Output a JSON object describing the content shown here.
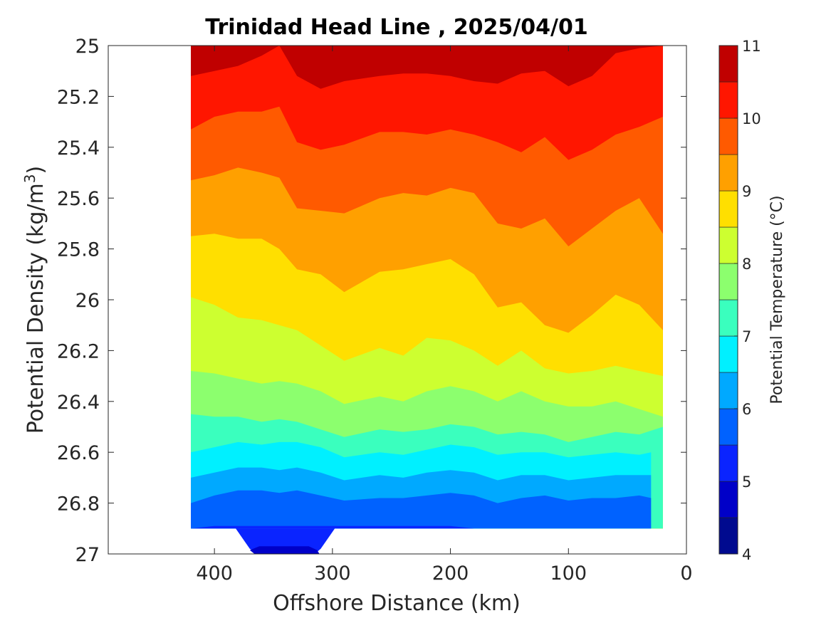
{
  "chart_data": {
    "type": "heatmap",
    "title": "Trinidad Head Line , 2025/04/01",
    "xlabel": "Offshore Distance (km)",
    "ylabel": "Potential Density (kg/m",
    "ylabel_superscript": "3",
    "ylabel_suffix": ")",
    "x_reversed": true,
    "xlim": [
      490,
      0
    ],
    "ylim": [
      25,
      27
    ],
    "y_reversed": true,
    "x_ticks": [
      "400",
      "300",
      "200",
      "100",
      "0"
    ],
    "x_tick_values": [
      400,
      300,
      200,
      100,
      0
    ],
    "y_ticks": [
      "25",
      "25.2",
      "25.4",
      "25.6",
      "25.8",
      "26",
      "26.2",
      "26.4",
      "26.6",
      "26.8",
      "27"
    ],
    "y_tick_values": [
      25,
      25.2,
      25.4,
      25.6,
      25.8,
      26,
      26.2,
      26.4,
      26.6,
      26.8,
      27
    ],
    "colorbar": {
      "label": "Potential Temperature (°C)",
      "range": [
        4,
        11
      ],
      "ticks": [
        "4",
        "5",
        "6",
        "7",
        "8",
        "9",
        "10",
        "11"
      ],
      "tick_values": [
        4,
        5,
        6,
        7,
        8,
        9,
        10,
        11
      ],
      "levels": [
        4,
        4.5,
        5,
        5.5,
        6,
        6.5,
        7,
        7.5,
        8,
        8.5,
        9,
        9.5,
        10,
        10.5,
        11
      ],
      "colors": [
        "#000a8f",
        "#0000c8",
        "#0a24ff",
        "#0062ff",
        "#00a9ff",
        "#00f0ff",
        "#3affbe",
        "#8cff6e",
        "#cdff30",
        "#ffdf00",
        "#ffa000",
        "#ff5a00",
        "#ff1600",
        "#c00000"
      ]
    },
    "data_extent_x": [
      420,
      20
    ],
    "contour_boundaries": [
      {
        "level": 10.5,
        "x": [
          420,
          400,
          380,
          360,
          345,
          330,
          310,
          290,
          260,
          240,
          220,
          200,
          180,
          160,
          140,
          120,
          100,
          80,
          60,
          40,
          20
        ],
        "y": [
          25.12,
          25.1,
          25.08,
          25.04,
          25.0,
          25.12,
          25.17,
          25.14,
          25.12,
          25.11,
          25.11,
          25.12,
          25.14,
          25.15,
          25.11,
          25.1,
          25.16,
          25.12,
          25.03,
          25.01,
          25.0
        ]
      },
      {
        "level": 10.0,
        "x": [
          420,
          400,
          380,
          360,
          345,
          330,
          310,
          290,
          260,
          240,
          220,
          200,
          180,
          160,
          140,
          120,
          100,
          80,
          60,
          40,
          20
        ],
        "y": [
          25.33,
          25.28,
          25.26,
          25.26,
          25.24,
          25.38,
          25.41,
          25.39,
          25.34,
          25.34,
          25.35,
          25.33,
          25.35,
          25.38,
          25.42,
          25.36,
          25.45,
          25.41,
          25.35,
          25.32,
          25.28
        ]
      },
      {
        "level": 9.5,
        "x": [
          420,
          400,
          380,
          360,
          345,
          330,
          310,
          290,
          260,
          240,
          220,
          200,
          180,
          160,
          140,
          120,
          100,
          80,
          60,
          40,
          20
        ],
        "y": [
          25.53,
          25.51,
          25.48,
          25.5,
          25.52,
          25.64,
          25.65,
          25.66,
          25.6,
          25.58,
          25.59,
          25.56,
          25.58,
          25.7,
          25.72,
          25.68,
          25.79,
          25.72,
          25.65,
          25.6,
          25.74
        ]
      },
      {
        "level": 9.0,
        "x": [
          420,
          400,
          380,
          360,
          345,
          330,
          310,
          290,
          260,
          240,
          220,
          200,
          180,
          160,
          140,
          120,
          100,
          80,
          60,
          40,
          20
        ],
        "y": [
          25.75,
          25.74,
          25.76,
          25.76,
          25.8,
          25.88,
          25.9,
          25.97,
          25.89,
          25.88,
          25.86,
          25.84,
          25.9,
          26.03,
          26.01,
          26.1,
          26.13,
          26.06,
          25.98,
          26.02,
          26.12
        ]
      },
      {
        "level": 8.5,
        "x": [
          420,
          400,
          380,
          360,
          345,
          330,
          310,
          290,
          260,
          240,
          220,
          200,
          180,
          160,
          140,
          120,
          100,
          80,
          60,
          40,
          20
        ],
        "y": [
          25.99,
          26.02,
          26.07,
          26.08,
          26.1,
          26.12,
          26.18,
          26.24,
          26.19,
          26.22,
          26.15,
          26.16,
          26.2,
          26.26,
          26.2,
          26.27,
          26.29,
          26.28,
          26.26,
          26.28,
          26.3
        ]
      },
      {
        "level": 8.0,
        "x": [
          420,
          400,
          380,
          360,
          345,
          330,
          310,
          290,
          260,
          240,
          220,
          200,
          180,
          160,
          140,
          120,
          100,
          80,
          60,
          40,
          20
        ],
        "y": [
          26.28,
          26.29,
          26.31,
          26.33,
          26.32,
          26.33,
          26.36,
          26.41,
          26.38,
          26.4,
          26.36,
          26.34,
          26.36,
          26.4,
          26.36,
          26.4,
          26.42,
          26.42,
          26.4,
          26.43,
          26.46
        ]
      },
      {
        "level": 7.5,
        "x": [
          420,
          400,
          380,
          360,
          345,
          330,
          310,
          290,
          260,
          240,
          220,
          200,
          180,
          160,
          140,
          120,
          100,
          80,
          60,
          40,
          20
        ],
        "y": [
          26.45,
          26.46,
          26.46,
          26.48,
          26.47,
          26.48,
          26.51,
          26.54,
          26.51,
          26.52,
          26.51,
          26.49,
          26.5,
          26.53,
          26.52,
          26.53,
          26.56,
          26.54,
          26.52,
          26.53,
          26.5
        ]
      },
      {
        "level": 7.0,
        "x": [
          420,
          400,
          380,
          360,
          345,
          330,
          310,
          290,
          260,
          240,
          220,
          200,
          180,
          160,
          140,
          120,
          100,
          80,
          60,
          40,
          30
        ],
        "y": [
          26.6,
          26.58,
          26.56,
          26.57,
          26.56,
          26.56,
          26.58,
          26.62,
          26.6,
          26.61,
          26.59,
          26.57,
          26.58,
          26.61,
          26.6,
          26.6,
          26.62,
          26.61,
          26.6,
          26.61,
          26.6
        ]
      },
      {
        "level": 6.5,
        "x": [
          420,
          400,
          380,
          360,
          345,
          330,
          310,
          290,
          260,
          240,
          220,
          200,
          180,
          160,
          140,
          120,
          100,
          80,
          60,
          40,
          30
        ],
        "y": [
          26.7,
          26.68,
          26.66,
          26.66,
          26.67,
          26.66,
          26.68,
          26.71,
          26.69,
          26.7,
          26.68,
          26.67,
          26.68,
          26.71,
          26.69,
          26.69,
          26.71,
          26.7,
          26.69,
          26.69,
          26.69
        ]
      },
      {
        "level": 6.0,
        "x": [
          420,
          400,
          380,
          360,
          345,
          330,
          310,
          290,
          260,
          240,
          220,
          200,
          180,
          160,
          140,
          120,
          100,
          80,
          60,
          40,
          30
        ],
        "y": [
          26.8,
          26.77,
          26.75,
          26.75,
          26.76,
          26.75,
          26.77,
          26.79,
          26.78,
          26.78,
          26.77,
          26.76,
          26.77,
          26.8,
          26.78,
          26.77,
          26.79,
          26.78,
          26.78,
          26.77,
          26.78
        ]
      },
      {
        "level": 5.5,
        "x": [
          420,
          400,
          380,
          360,
          345,
          330,
          310,
          290,
          260,
          240,
          220,
          200,
          180,
          160,
          140,
          120,
          100,
          80,
          60,
          40,
          30
        ],
        "y": [
          26.9,
          26.89,
          26.89,
          26.89,
          26.89,
          26.89,
          26.89,
          26.89,
          26.89,
          26.89,
          26.89,
          26.89,
          26.9,
          26.9,
          26.9,
          26.9,
          26.9,
          26.9,
          26.9,
          26.9,
          26.9
        ]
      }
    ],
    "deep_blob": {
      "x": [
        382,
        370,
        362,
        315,
        310,
        298
      ],
      "y": [
        26.9,
        26.98,
        27.0,
        27.0,
        26.98,
        26.9
      ]
    }
  }
}
